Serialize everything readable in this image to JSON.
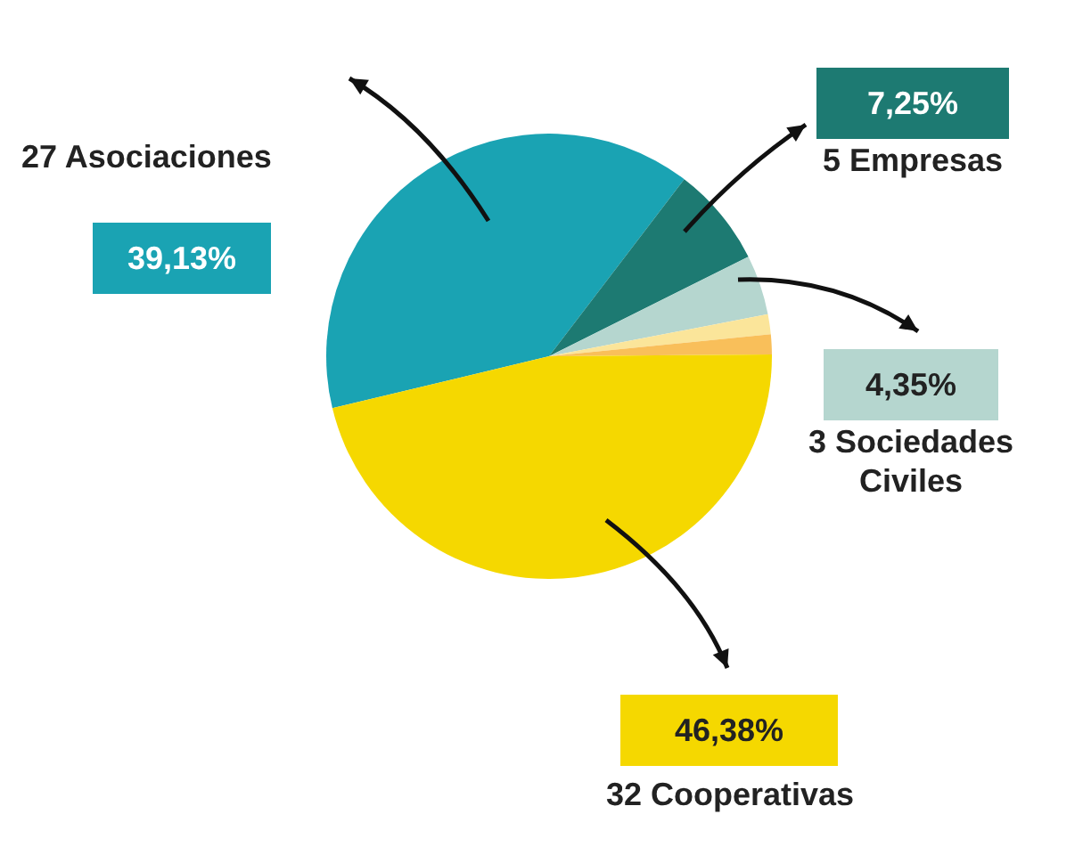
{
  "chart_data": {
    "type": "pie",
    "categories": [
      "27 Asociaciones",
      "5 Empresas",
      "3 Sociedades Civiles",
      null,
      null,
      "32 Cooperativas"
    ],
    "values": [
      39.13,
      7.25,
      4.35,
      1.45,
      1.45,
      46.38
    ],
    "colors": [
      "#1aa3b3",
      "#1d7a72",
      "#b5d6cf",
      "#fbe59a",
      "#f9bf5a",
      "#f5d800"
    ],
    "value_labels": [
      "39,13%",
      "7,25%",
      "4,35%",
      null,
      null,
      "46,38%"
    ],
    "legend": false
  }
}
